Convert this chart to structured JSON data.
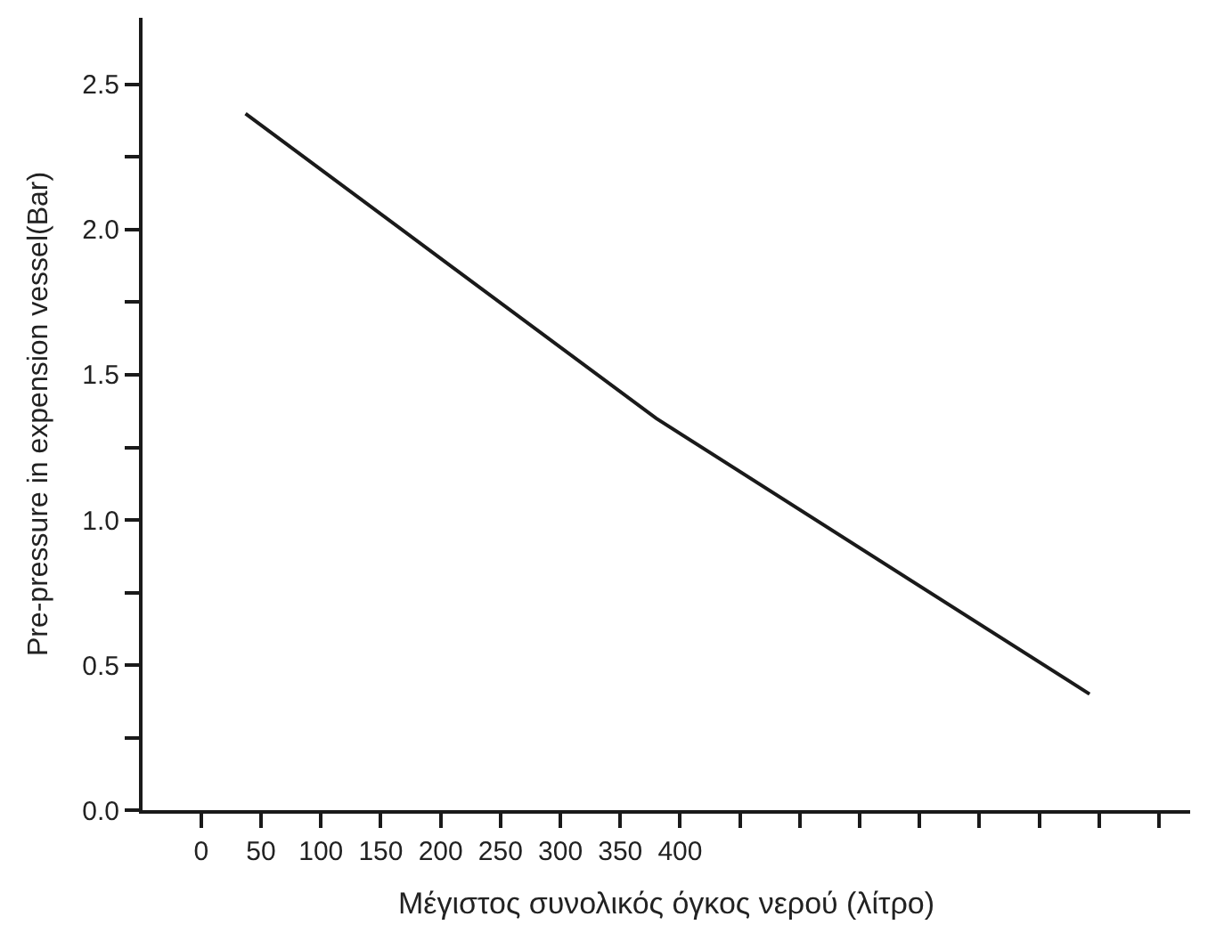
{
  "chart_data": {
    "type": "line",
    "xlabel": "Μέγιστος συνολικός όγκος νερού (λίτρο)",
    "ylabel": "Pre-pressure in expension vessel(Bar)",
    "x": [
      37,
      380,
      742
    ],
    "series": [
      {
        "color": "#1a1a1a",
        "values": [
          2.4,
          1.35,
          0.4
        ]
      }
    ],
    "xlim": [
      -49,
      826
    ],
    "ylim": [
      0,
      2.73
    ],
    "xticks": [
      0,
      50,
      100,
      150,
      200,
      250,
      300,
      350,
      400,
      {
        "value": 450,
        "label": null
      },
      {
        "value": 500,
        "label": null
      },
      {
        "value": 550,
        "label": null
      },
      {
        "value": 600,
        "label": null
      },
      {
        "value": 650,
        "label": null
      },
      {
        "value": 700,
        "label": null
      },
      {
        "value": 750,
        "label": null
      },
      {
        "value": 800,
        "label": null
      }
    ],
    "yticks": [
      {
        "value": 0,
        "label": "0.0"
      },
      {
        "value": 0.25,
        "label": null
      },
      {
        "value": 0.5,
        "label": "0.5"
      },
      {
        "value": 0.75,
        "label": null
      },
      {
        "value": 1,
        "label": "1.0"
      },
      {
        "value": 1.25,
        "label": null
      },
      {
        "value": 1.5,
        "label": "1.5"
      },
      {
        "value": 1.75,
        "label": null
      },
      {
        "value": 2,
        "label": "2.0"
      },
      {
        "value": 2.25,
        "label": null
      },
      {
        "value": 2.5,
        "label": "2.5"
      }
    ],
    "marker": "none",
    "line_style": "solid"
  }
}
